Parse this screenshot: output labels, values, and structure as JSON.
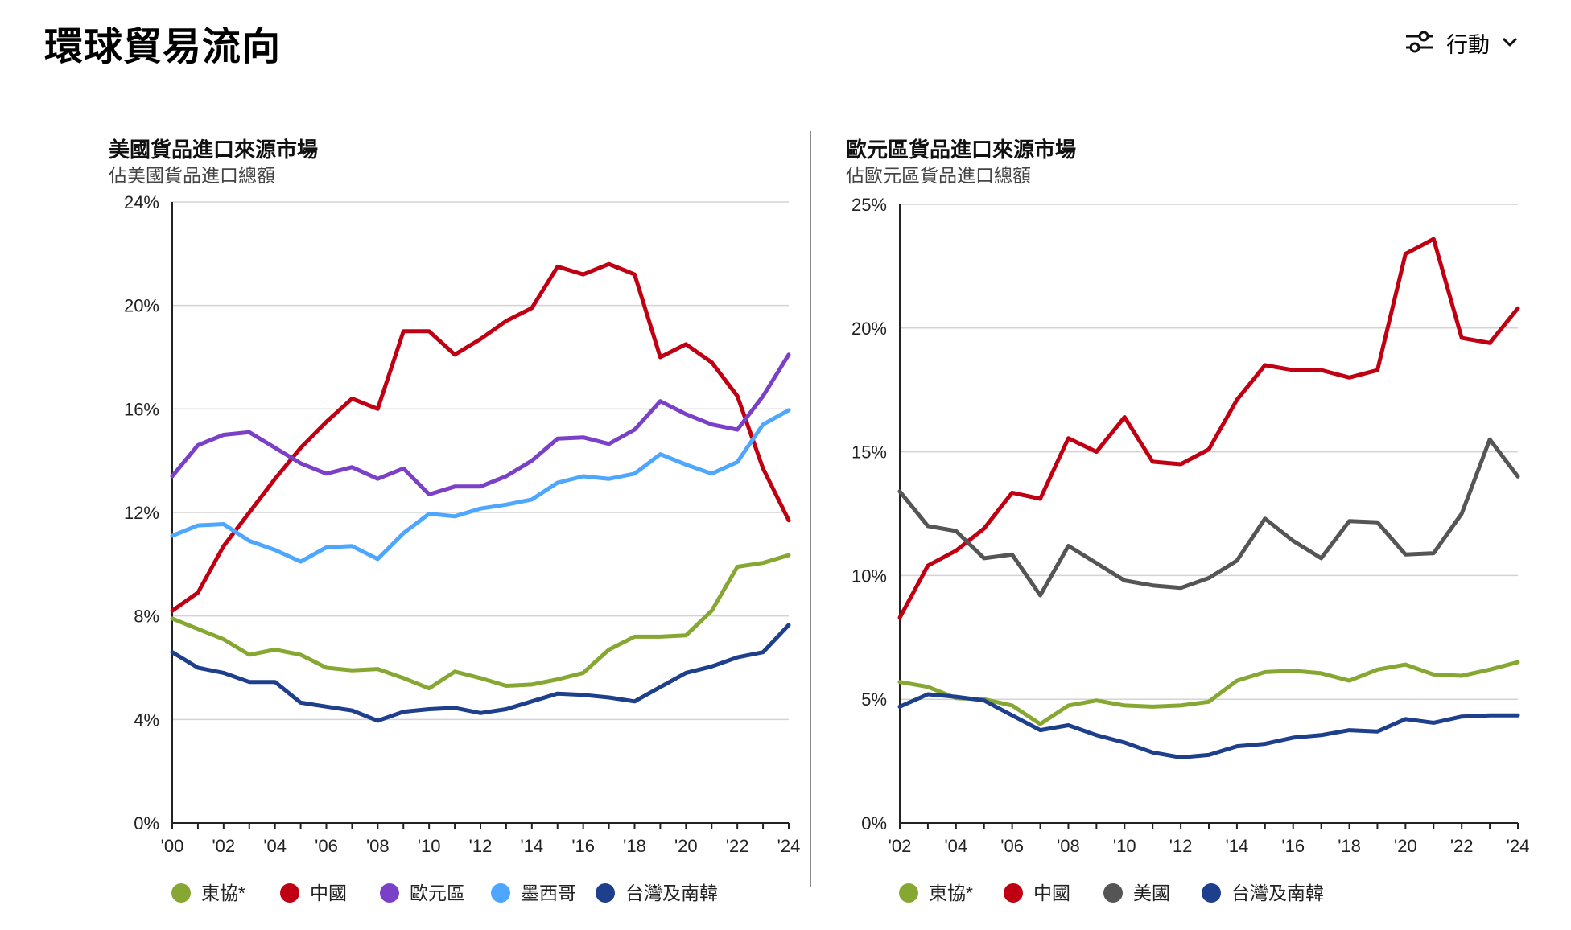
{
  "page": {
    "title": "環球貿易流向",
    "actions_label": "行動"
  },
  "chart_data": [
    {
      "type": "line",
      "title": "美國貨品進口來源市場",
      "subtitle": "佔美國貨品進口總額",
      "x": [
        2000,
        2001,
        2002,
        2003,
        2004,
        2005,
        2006,
        2007,
        2008,
        2009,
        2010,
        2011,
        2012,
        2013,
        2014,
        2015,
        2016,
        2017,
        2018,
        2019,
        2020,
        2021,
        2022,
        2023,
        2024
      ],
      "xticks": [
        2000,
        2002,
        2004,
        2006,
        2008,
        2010,
        2012,
        2014,
        2016,
        2018,
        2020,
        2022,
        2024
      ],
      "xtick_labels": [
        "'00",
        "'02",
        "'04",
        "'06",
        "'08",
        "'10",
        "'12",
        "'14",
        "'16",
        "'18",
        "'20",
        "'22",
        "'24"
      ],
      "yticks": [
        0,
        4,
        8,
        12,
        16,
        20,
        24
      ],
      "ytick_labels": [
        "0%",
        "4%",
        "8%",
        "12%",
        "16%",
        "20%",
        "24%"
      ],
      "ylim": [
        0,
        24
      ],
      "grid": true,
      "series": [
        {
          "name": "東協*",
          "color": "#86a832",
          "values": [
            7.9,
            7.5,
            7.1,
            6.5,
            6.7,
            6.5,
            6.0,
            5.9,
            5.95,
            5.6,
            5.2,
            5.85,
            5.6,
            5.3,
            5.35,
            5.55,
            5.8,
            6.7,
            7.2,
            7.2,
            7.25,
            8.2,
            9.9,
            10.05,
            10.35
          ]
        },
        {
          "name": "中國",
          "color": "#c00012",
          "values": [
            8.2,
            8.9,
            10.7,
            12.0,
            13.3,
            14.5,
            15.5,
            16.4,
            16.0,
            19.0,
            19.0,
            18.1,
            18.7,
            19.4,
            19.9,
            21.5,
            21.2,
            21.6,
            21.2,
            18.0,
            18.5,
            17.8,
            16.5,
            13.7,
            11.7
          ]
        },
        {
          "name": "歐元區",
          "color": "#7a40c8",
          "values": [
            13.4,
            14.6,
            15.0,
            15.1,
            14.5,
            13.9,
            13.5,
            13.75,
            13.3,
            13.7,
            12.7,
            13.0,
            13.0,
            13.4,
            14.0,
            14.85,
            14.9,
            14.65,
            15.2,
            16.3,
            15.8,
            15.4,
            15.2,
            16.5,
            18.1
          ]
        },
        {
          "name": "墨西哥",
          "color": "#4da6ff",
          "values": [
            11.1,
            11.5,
            11.55,
            10.9,
            10.55,
            10.1,
            10.65,
            10.7,
            10.2,
            11.2,
            11.95,
            11.85,
            12.15,
            12.3,
            12.5,
            13.15,
            13.4,
            13.3,
            13.5,
            14.25,
            13.85,
            13.5,
            13.95,
            15.4,
            15.95
          ]
        },
        {
          "name": "台灣及南韓",
          "color": "#1e3f8c",
          "values": [
            6.6,
            6.0,
            5.8,
            5.45,
            5.45,
            4.65,
            4.5,
            4.35,
            3.95,
            4.3,
            4.4,
            4.45,
            4.25,
            4.4,
            4.7,
            5.0,
            4.95,
            4.85,
            4.7,
            5.25,
            5.8,
            6.05,
            6.4,
            6.6,
            7.65
          ]
        }
      ]
    },
    {
      "type": "line",
      "title": "歐元區貨品進口來源市場",
      "subtitle": "佔歐元區貨品進口總額",
      "x": [
        2002,
        2003,
        2004,
        2005,
        2006,
        2007,
        2008,
        2009,
        2010,
        2011,
        2012,
        2013,
        2014,
        2015,
        2016,
        2017,
        2018,
        2019,
        2020,
        2021,
        2022,
        2023,
        2024
      ],
      "xticks": [
        2002,
        2004,
        2006,
        2008,
        2010,
        2012,
        2014,
        2016,
        2018,
        2020,
        2022,
        2024
      ],
      "xtick_labels": [
        "'02",
        "'04",
        "'06",
        "'08",
        "'10",
        "'12",
        "'14",
        "'16",
        "'18",
        "'20",
        "'22",
        "'24"
      ],
      "yticks": [
        0,
        5,
        10,
        15,
        20,
        25
      ],
      "ytick_labels": [
        "0%",
        "5%",
        "10%",
        "15%",
        "20%",
        "25%"
      ],
      "ylim": [
        0,
        25
      ],
      "grid": true,
      "series": [
        {
          "name": "東協*",
          "color": "#86a832",
          "values": [
            5.7,
            5.5,
            5.05,
            5.0,
            4.75,
            4.0,
            4.75,
            4.95,
            4.75,
            4.7,
            4.75,
            4.9,
            5.75,
            6.1,
            6.15,
            6.05,
            5.75,
            6.2,
            6.4,
            6.0,
            5.95,
            6.2,
            6.5
          ]
        },
        {
          "name": "中國",
          "color": "#c00012",
          "values": [
            8.3,
            10.4,
            11.0,
            11.9,
            13.35,
            13.1,
            15.55,
            15.0,
            16.4,
            14.6,
            14.5,
            15.1,
            17.1,
            18.5,
            18.3,
            18.3,
            18.0,
            18.3,
            23.0,
            23.6,
            19.6,
            19.4,
            20.8
          ]
        },
        {
          "name": "美國",
          "color": "#555555",
          "values": [
            13.4,
            12.0,
            11.8,
            10.7,
            10.85,
            9.2,
            11.2,
            10.5,
            9.8,
            9.6,
            9.5,
            9.9,
            10.6,
            12.3,
            11.4,
            10.7,
            12.2,
            12.15,
            10.85,
            10.9,
            12.5,
            15.5,
            14.0
          ]
        },
        {
          "name": "台灣及南韓",
          "color": "#1e3f8c",
          "values": [
            4.7,
            5.2,
            5.1,
            4.95,
            4.35,
            3.75,
            3.95,
            3.55,
            3.25,
            2.85,
            2.65,
            2.75,
            3.1,
            3.2,
            3.45,
            3.55,
            3.75,
            3.7,
            4.2,
            4.05,
            4.3,
            4.35,
            4.35
          ]
        }
      ]
    }
  ]
}
